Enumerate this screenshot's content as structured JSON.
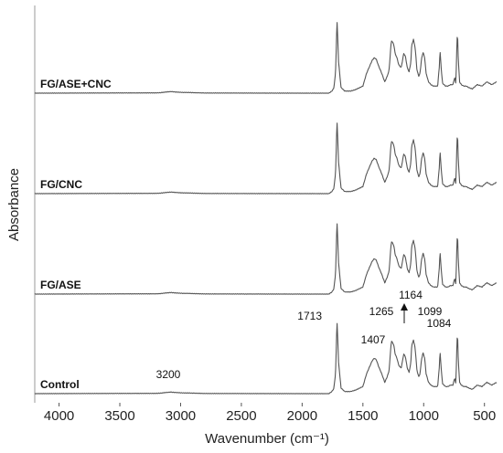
{
  "chart_data": {
    "type": "line",
    "title": "",
    "xlabel": "Wavenumber (cm⁻¹)",
    "ylabel": "Absorbance",
    "xlim": [
      4200,
      400
    ],
    "x_reversed": true,
    "x_ticks": [
      4000,
      3500,
      3000,
      2500,
      2000,
      1500,
      1000,
      500
    ],
    "stacked_offset_series": true,
    "grid": false,
    "legend": "none",
    "series_color": "#555555",
    "peaks": [
      [
        4200,
        0
      ],
      [
        3200,
        0.2
      ],
      [
        3170,
        0.3
      ],
      [
        3120,
        0.8
      ],
      [
        3080,
        1.1
      ],
      [
        3040,
        0.8
      ],
      [
        2980,
        0.5
      ],
      [
        2930,
        0.45
      ],
      [
        2880,
        0.3
      ],
      [
        2800,
        0.1
      ],
      [
        2000,
        0
      ],
      [
        1780,
        0
      ],
      [
        1755,
        1.5
      ],
      [
        1740,
        3.5
      ],
      [
        1725,
        14
      ],
      [
        1713,
        52
      ],
      [
        1700,
        22
      ],
      [
        1680,
        4
      ],
      [
        1650,
        1.5
      ],
      [
        1600,
        1.5
      ],
      [
        1560,
        2.5
      ],
      [
        1500,
        5
      ],
      [
        1470,
        14
      ],
      [
        1445,
        19
      ],
      [
        1425,
        23
      ],
      [
        1407,
        25
      ],
      [
        1390,
        24
      ],
      [
        1370,
        19
      ],
      [
        1345,
        14
      ],
      [
        1320,
        8
      ],
      [
        1300,
        12
      ],
      [
        1285,
        16
      ],
      [
        1270,
        33
      ],
      [
        1265,
        37
      ],
      [
        1255,
        36
      ],
      [
        1245,
        34
      ],
      [
        1235,
        28
      ],
      [
        1220,
        25
      ],
      [
        1205,
        20
      ],
      [
        1185,
        18
      ],
      [
        1164,
        28
      ],
      [
        1150,
        26
      ],
      [
        1135,
        18
      ],
      [
        1120,
        15
      ],
      [
        1105,
        22
      ],
      [
        1099,
        34
      ],
      [
        1090,
        36
      ],
      [
        1084,
        38
      ],
      [
        1070,
        32
      ],
      [
        1055,
        16
      ],
      [
        1040,
        12
      ],
      [
        1030,
        14
      ],
      [
        1018,
        24
      ],
      [
        1005,
        29
      ],
      [
        992,
        25
      ],
      [
        980,
        14
      ],
      [
        960,
        8
      ],
      [
        940,
        6
      ],
      [
        920,
        5
      ],
      [
        900,
        5
      ],
      [
        885,
        5
      ],
      [
        872,
        18
      ],
      [
        865,
        30
      ],
      [
        858,
        20
      ],
      [
        845,
        7
      ],
      [
        820,
        5
      ],
      [
        800,
        5
      ],
      [
        780,
        6
      ],
      [
        760,
        6
      ],
      [
        745,
        11
      ],
      [
        735,
        7
      ],
      [
        728,
        30
      ],
      [
        722,
        44
      ],
      [
        716,
        26
      ],
      [
        705,
        8
      ],
      [
        690,
        6
      ],
      [
        670,
        5
      ],
      [
        650,
        5
      ],
      [
        630,
        4
      ],
      [
        600,
        3
      ],
      [
        560,
        6
      ],
      [
        520,
        5
      ],
      [
        480,
        8
      ],
      [
        440,
        6
      ],
      [
        400,
        8
      ]
    ],
    "series": [
      {
        "name": "Control",
        "baseline_offset": 0
      },
      {
        "name": "FG/ASE",
        "baseline_offset": 1
      },
      {
        "name": "FG/CNC",
        "baseline_offset": 2
      },
      {
        "name": "FG/ASE+CNC",
        "baseline_offset": 3
      }
    ],
    "annotations": [
      {
        "text": "3200",
        "x": 3200
      },
      {
        "text": "1713",
        "x": 1713
      },
      {
        "text": "1407",
        "x": 1407
      },
      {
        "text": "1265",
        "x": 1265
      },
      {
        "text": "1164",
        "x": 1164,
        "arrow": true
      },
      {
        "text": "1099",
        "x": 1099
      },
      {
        "text": "1084",
        "x": 1084
      }
    ]
  }
}
